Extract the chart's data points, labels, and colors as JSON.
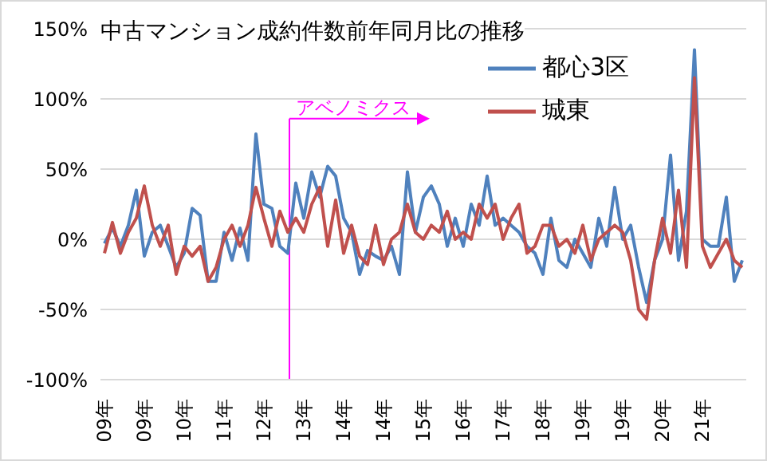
{
  "chart_data": {
    "type": "line",
    "title": "中古マンション成約件数前年同月比の推移",
    "categories": [
      "09年",
      null,
      null,
      null,
      null,
      "09年",
      null,
      null,
      null,
      null,
      "10年",
      null,
      null,
      null,
      null,
      "11年",
      null,
      null,
      null,
      null,
      "12年",
      null,
      null,
      null,
      null,
      "13年",
      null,
      null,
      null,
      null,
      "14年",
      null,
      null,
      null,
      null,
      "14年",
      null,
      null,
      null,
      null,
      "15年",
      null,
      null,
      null,
      null,
      "16年",
      null,
      null,
      null,
      null,
      "17年",
      null,
      null,
      null,
      null,
      "18年",
      null,
      null,
      null,
      null,
      "19年",
      null,
      null,
      null,
      null,
      "19年",
      null,
      null,
      null,
      null,
      "20年",
      null,
      null,
      null,
      null,
      "21年",
      null,
      null,
      null,
      null,
      null
    ],
    "ylim": [
      -100,
      150
    ],
    "yticks": [
      {
        "value": -100,
        "label": "-100%"
      },
      {
        "value": -50,
        "label": "-50%"
      },
      {
        "value": 0,
        "label": "0%"
      },
      {
        "value": 50,
        "label": "50%"
      },
      {
        "value": 100,
        "label": "100%"
      },
      {
        "value": 150,
        "label": "150%"
      }
    ],
    "grid": "y",
    "legend": "top right",
    "marker": "none",
    "series": [
      {
        "name": "都心3区",
        "color": "#4f81bd",
        "values": [
          -3,
          8,
          -5,
          10,
          35,
          -12,
          5,
          10,
          -5,
          -20,
          -10,
          22,
          17,
          -30,
          -30,
          5,
          -15,
          8,
          -15,
          75,
          25,
          22,
          -5,
          -10,
          40,
          15,
          48,
          30,
          52,
          45,
          15,
          5,
          -25,
          -8,
          -12,
          -15,
          -5,
          -25,
          48,
          5,
          30,
          38,
          25,
          -5,
          15,
          -5,
          25,
          10,
          45,
          10,
          15,
          10,
          5,
          -5,
          -10,
          -25,
          15,
          -15,
          -20,
          0,
          -10,
          -20,
          15,
          -5,
          37,
          0,
          10,
          -20,
          -45,
          -15,
          0,
          60,
          -15,
          20,
          135,
          0,
          -5,
          -5,
          30,
          -30,
          -15
        ]
      },
      {
        "name": "城東",
        "color": "#c0504d",
        "values": [
          -10,
          12,
          -10,
          5,
          15,
          38,
          10,
          -5,
          10,
          -25,
          -5,
          -12,
          -5,
          -30,
          -20,
          0,
          10,
          -5,
          10,
          37,
          15,
          -5,
          20,
          5,
          15,
          5,
          25,
          37,
          -5,
          28,
          -10,
          10,
          -12,
          -18,
          10,
          -18,
          0,
          5,
          25,
          5,
          0,
          10,
          5,
          20,
          0,
          5,
          0,
          25,
          15,
          25,
          0,
          15,
          25,
          -10,
          -5,
          10,
          10,
          -5,
          0,
          -10,
          10,
          -15,
          0,
          5,
          10,
          5,
          -15,
          -50,
          -57,
          -15,
          15,
          -10,
          35,
          -20,
          115,
          -5,
          -20,
          -10,
          0,
          -15,
          -20
        ]
      }
    ],
    "annotations": [
      "アベノミクス"
    ]
  }
}
